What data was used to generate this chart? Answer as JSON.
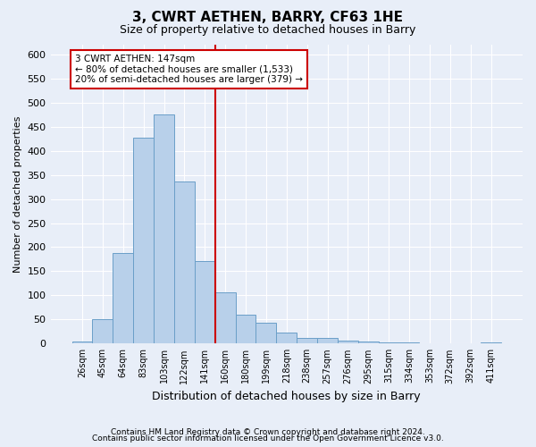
{
  "title": "3, CWRT AETHEN, BARRY, CF63 1HE",
  "subtitle": "Size of property relative to detached houses in Barry",
  "xlabel": "Distribution of detached houses by size in Barry",
  "ylabel": "Number of detached properties",
  "footer_line1": "Contains HM Land Registry data © Crown copyright and database right 2024.",
  "footer_line2": "Contains public sector information licensed under the Open Government Licence v3.0.",
  "bar_labels": [
    "26sqm",
    "45sqm",
    "64sqm",
    "83sqm",
    "103sqm",
    "122sqm",
    "141sqm",
    "160sqm",
    "180sqm",
    "199sqm",
    "218sqm",
    "238sqm",
    "257sqm",
    "276sqm",
    "295sqm",
    "315sqm",
    "334sqm",
    "353sqm",
    "372sqm",
    "392sqm",
    "411sqm"
  ],
  "bar_values": [
    5,
    50,
    187,
    428,
    476,
    336,
    172,
    107,
    60,
    43,
    22,
    11,
    11,
    7,
    5,
    3,
    2,
    1,
    1,
    1,
    2
  ],
  "bar_color": "#b8d0ea",
  "bar_edge_color": "#6a9fc8",
  "background_color": "#e8eef8",
  "grid_color": "#ffffff",
  "annotation_line1": "3 CWRT AETHEN: 147sqm",
  "annotation_line2": "← 80% of detached houses are smaller (1,533)",
  "annotation_line3": "20% of semi-detached houses are larger (379) →",
  "annotation_box_facecolor": "#ffffff",
  "annotation_box_edgecolor": "#cc0000",
  "vline_color": "#cc0000",
  "vline_x": 6.5,
  "ylim_max": 620,
  "yticks": [
    0,
    50,
    100,
    150,
    200,
    250,
    300,
    350,
    400,
    450,
    500,
    550,
    600
  ]
}
